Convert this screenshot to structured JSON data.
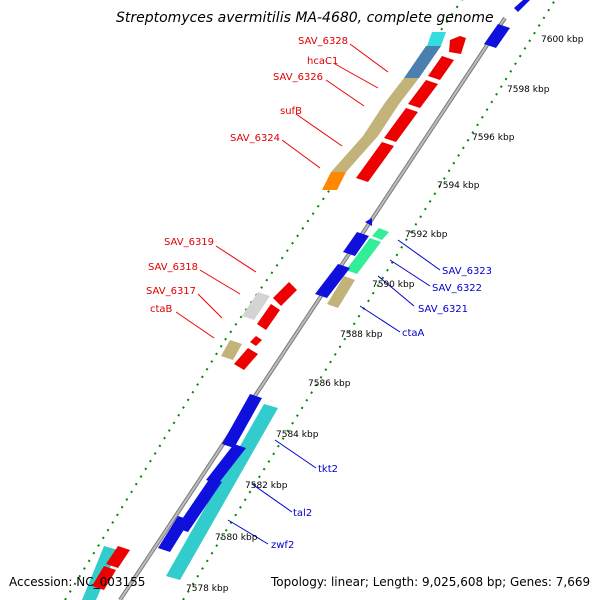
{
  "title": "Streptomyces avermitilis MA-4680, complete genome",
  "footer": {
    "accession": "Accession: NC_003155",
    "summary": "Topology: linear; Length: 9,025,608 bp; Genes: 7,669"
  },
  "ticks": [
    "7600 kbp",
    "7598 kbp",
    "7596 kbp",
    "7594 kbp",
    "7592 kbp",
    "7590 kbp",
    "7588 kbp",
    "7586 kbp",
    "7584 kbp",
    "7582 kbp",
    "7580 kbp",
    "7578 kbp"
  ],
  "genes_left": [
    "SAV_6328",
    "hcaC1",
    "SAV_6326",
    "sufB",
    "SAV_6324",
    "SAV_6319",
    "SAV_6318",
    "SAV_6317",
    "ctaB"
  ],
  "genes_right": [
    "SAV_6323",
    "SAV_6322",
    "SAV_6321",
    "ctaA",
    "tkt2",
    "tal2",
    "zwf2"
  ],
  "colors": {
    "forward": "#ee0000",
    "reverse": "#1010dd",
    "cog_khaki": "#c2b37a",
    "cog_cyan": "#33cccc",
    "cog_steel": "#4a7fb0",
    "cog_grey": "#d4d4d4",
    "cog_orange": "#ff8800",
    "cog_mint": "#33ee99",
    "backbone": "#888888",
    "tick": "#008800"
  }
}
